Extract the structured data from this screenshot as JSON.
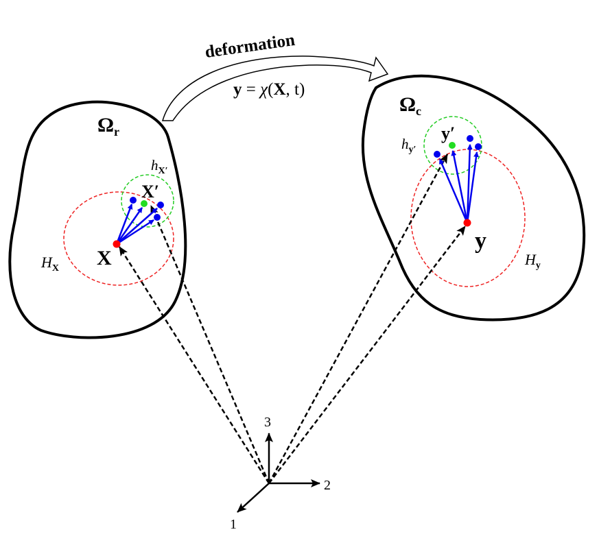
{
  "deformation_label": "deformation",
  "equation": {
    "lhs": "y",
    "eq": " = ",
    "chi": "χ",
    "args_open": "(",
    "X": "X",
    "comma": ", t)"
  },
  "reference": {
    "omega": "Ω",
    "sub": "r",
    "point": "X",
    "neighbor": "X′",
    "H": "H",
    "H_sub": "X",
    "h": "h",
    "h_sub": "X′"
  },
  "current": {
    "omega": "Ω",
    "sub": "c",
    "point": "y",
    "neighbor": "y′",
    "H": "H",
    "H_sub": "y",
    "h": "h",
    "h_sub": "y′"
  },
  "axes": {
    "axis1": "1",
    "axis2": "2",
    "axis3": "3"
  },
  "colors": {
    "point": "#ff0000",
    "neighbor": "#22dd22",
    "family": "#0000ee",
    "horizon": "#ee2222",
    "small_horizon": "#22cc22"
  }
}
